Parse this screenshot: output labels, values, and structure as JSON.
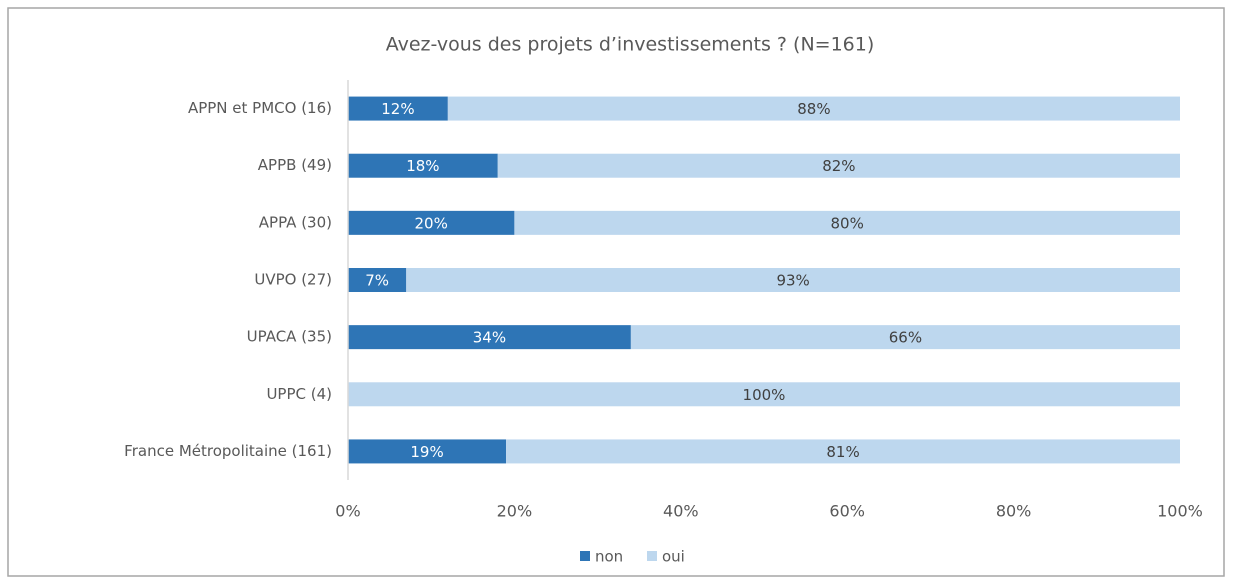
{
  "chart_data": {
    "type": "stacked_barh",
    "title": "Avez-vous des projets d’investissements ? (N=161)",
    "categories": [
      "APPN et PMCO (16)",
      "APPB (49)",
      "APPA (30)",
      "UVPO (27)",
      "UPACA (35)",
      "UPPC (4)",
      "France Métropolitaine (161)"
    ],
    "series": [
      {
        "name": "non",
        "color": "#2e75b6",
        "values": [
          12,
          18,
          20,
          7,
          34,
          0,
          19
        ],
        "value_labels": [
          "12%",
          "18%",
          "20%",
          "7%",
          "34%",
          null,
          "19%"
        ]
      },
      {
        "name": "oui",
        "color": "#bdd7ee",
        "values": [
          88,
          82,
          80,
          93,
          66,
          100,
          81
        ],
        "value_labels": [
          "88%",
          "82%",
          "80%",
          "93%",
          "66%",
          "100%",
          "81%"
        ]
      }
    ],
    "xlim": [
      0,
      100
    ],
    "xticks": [
      {
        "value": 0,
        "label": "0%"
      },
      {
        "value": 20,
        "label": "20%"
      },
      {
        "value": 40,
        "label": "40%"
      },
      {
        "value": 60,
        "label": "60%"
      },
      {
        "value": 80,
        "label": "80%"
      },
      {
        "value": 100,
        "label": "100%"
      }
    ],
    "legend": "bottom"
  }
}
